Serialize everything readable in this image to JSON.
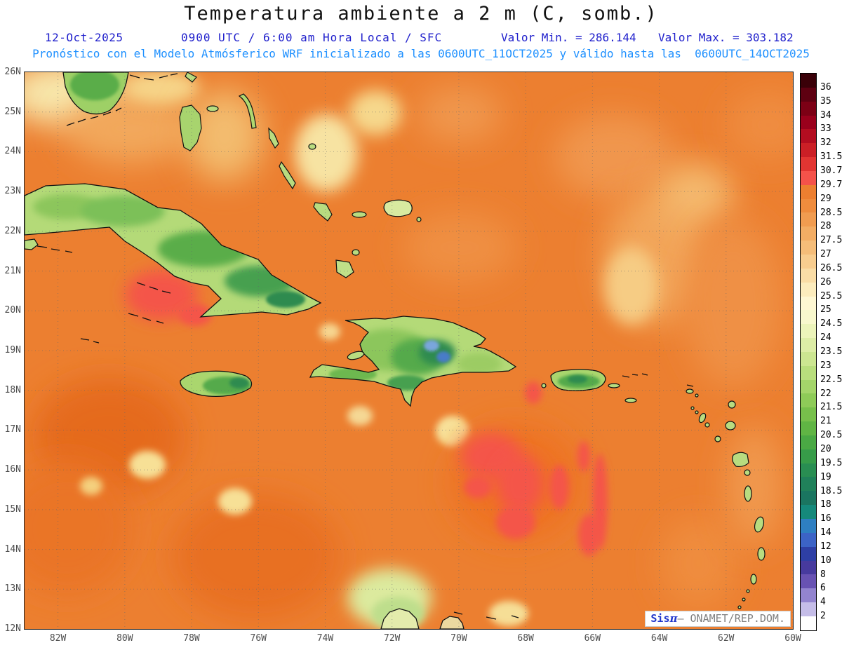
{
  "header": {
    "title": "Temperatura ambiente a 2 m (C, somb.)",
    "date": "12-Oct-2025",
    "time": "0900 UTC / 6:00 am Hora Local / SFC",
    "min": "Valor Min. = 286.144",
    "max": "Valor Max. = 303.182",
    "forecast": "Pronóstico con el Modelo Atmósferico WRF inicializado a las 0600UTC_11OCT2025 y válido hasta las  0600UTC_14OCT2025"
  },
  "axes": {
    "lat_labels": [
      "26N",
      "25N",
      "24N",
      "23N",
      "22N",
      "21N",
      "20N",
      "19N",
      "18N",
      "17N",
      "16N",
      "15N",
      "14N",
      "13N",
      "12N"
    ],
    "lon_labels": [
      "82W",
      "80W",
      "78W",
      "76W",
      "74W",
      "72W",
      "70W",
      "68W",
      "66W",
      "64W",
      "62W",
      "60W"
    ]
  },
  "colorbar": {
    "labels": [
      "36",
      "35",
      "34",
      "33",
      "32",
      "31.5",
      "30.7",
      "29.7",
      "29",
      "28.5",
      "28",
      "27.5",
      "27",
      "26.5",
      "26",
      "25.5",
      "25",
      "24.5",
      "24",
      "23.5",
      "23",
      "22.5",
      "22",
      "21.5",
      "21",
      "20.5",
      "20",
      "19.5",
      "19",
      "18.5",
      "18",
      "16",
      "14",
      "12",
      "10",
      "8",
      "6",
      "4",
      "2"
    ],
    "colors": [
      "#3a0008",
      "#5e0011",
      "#7c0015",
      "#99001c",
      "#b30d20",
      "#cb1f26",
      "#e23532",
      "#f4524a",
      "#ec7f30",
      "#ef8c3d",
      "#f19c50",
      "#f3ad64",
      "#f5bd79",
      "#f8cd8f",
      "#fadda6",
      "#fcecbd",
      "#fef7d3",
      "#f8f8cd",
      "#ecf4ba",
      "#ddeda6",
      "#cce691",
      "#b9de7d",
      "#a4d56a",
      "#8ecb58",
      "#77c04b",
      "#60b544",
      "#4aa944",
      "#379c49",
      "#298e52",
      "#20815a",
      "#1a7560",
      "#15897b",
      "#2e7fc2",
      "#3c63c6",
      "#2e3fa5",
      "#473a9e",
      "#6852b2",
      "#9384cf",
      "#c5bde8",
      "#ffffff"
    ]
  },
  "watermark": {
    "sis": "Sis",
    "pi": "π",
    "rest": "– ONAMET/REP.DOM."
  },
  "chart_data": {
    "type": "heatmap",
    "title": "Temperatura ambiente a 2 m (C, somb.)",
    "valor_min": 286.144,
    "valor_max": 303.182,
    "x_ticks": [
      "82W",
      "80W",
      "78W",
      "76W",
      "74W",
      "72W",
      "70W",
      "68W",
      "66W",
      "64W",
      "62W",
      "60W"
    ],
    "y_ticks": [
      "26N",
      "25N",
      "24N",
      "23N",
      "22N",
      "21N",
      "20N",
      "19N",
      "18N",
      "17N",
      "16N",
      "15N",
      "14N",
      "13N",
      "12N"
    ],
    "color_scale_levels_C": [
      36,
      35,
      34,
      33,
      32,
      31.5,
      30.7,
      29.7,
      29,
      28.5,
      28,
      27.5,
      27,
      26.5,
      26,
      25.5,
      25,
      24.5,
      24,
      23.5,
      23,
      22.5,
      22,
      21.5,
      21,
      20.5,
      20,
      19.5,
      19,
      18.5,
      18,
      16,
      14,
      12,
      10,
      8,
      6,
      4,
      2
    ],
    "description": "2 m air temperature WRF forecast over the Caribbean: sea mostly 28.5-29.7 C (orange), warm pools 29.7-30.7 C (red), island interiors 17-25 C (greens), Hispaniola high peaks 13-16 C (blue spots)"
  }
}
